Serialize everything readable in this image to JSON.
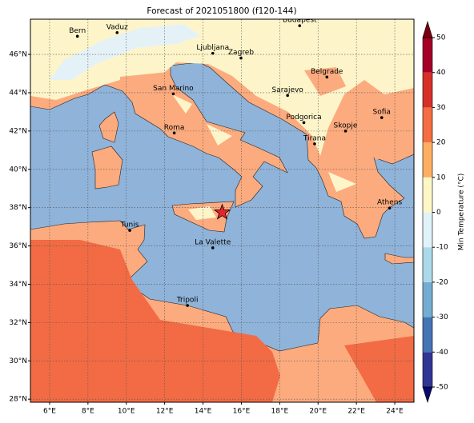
{
  "map": {
    "title": "Forecast of 2021051800 (f120-144)",
    "xlim": [
      5,
      25
    ],
    "ylim": [
      27.84,
      47.84
    ],
    "xticks": [
      {
        "value": 6,
        "label": "6°E"
      },
      {
        "value": 8,
        "label": "8°E"
      },
      {
        "value": 10,
        "label": "10°E"
      },
      {
        "value": 12,
        "label": "12°E"
      },
      {
        "value": 14,
        "label": "14°E"
      },
      {
        "value": 16,
        "label": "16°E"
      },
      {
        "value": 18,
        "label": "18°E"
      },
      {
        "value": 20,
        "label": "20°E"
      },
      {
        "value": 22,
        "label": "22°E"
      },
      {
        "value": 24,
        "label": "24°E"
      }
    ],
    "yticks": [
      {
        "value": 28,
        "label": "28°N"
      },
      {
        "value": 30,
        "label": "30°N"
      },
      {
        "value": 32,
        "label": "32°N"
      },
      {
        "value": 34,
        "label": "34°N"
      },
      {
        "value": 36,
        "label": "36°N"
      },
      {
        "value": 38,
        "label": "38°N"
      },
      {
        "value": 40,
        "label": "40°N"
      },
      {
        "value": 42,
        "label": "42°N"
      },
      {
        "value": 44,
        "label": "44°N"
      },
      {
        "value": 46,
        "label": "46°N"
      }
    ],
    "grid": true,
    "cities": [
      {
        "name": "Bern",
        "lon": 7.45,
        "lat": 46.95
      },
      {
        "name": "Vaduz",
        "lon": 9.52,
        "lat": 47.14
      },
      {
        "name": "Budapest",
        "lon": 19.04,
        "lat": 47.5
      },
      {
        "name": "Ljubljana",
        "lon": 14.51,
        "lat": 46.06
      },
      {
        "name": "Zagreb",
        "lon": 15.98,
        "lat": 45.81
      },
      {
        "name": "San Marino",
        "lon": 12.45,
        "lat": 43.94
      },
      {
        "name": "Belgrade",
        "lon": 20.46,
        "lat": 44.82
      },
      {
        "name": "Sarajevo",
        "lon": 18.41,
        "lat": 43.86
      },
      {
        "name": "Podgorica",
        "lon": 19.26,
        "lat": 42.44
      },
      {
        "name": "Sofia",
        "lon": 23.32,
        "lat": 42.7
      },
      {
        "name": "Skopje",
        "lon": 21.43,
        "lat": 42.0
      },
      {
        "name": "Roma",
        "lon": 12.5,
        "lat": 41.9
      },
      {
        "name": "Tirana",
        "lon": 19.82,
        "lat": 41.33
      },
      {
        "name": "Athens",
        "lon": 23.73,
        "lat": 37.98
      },
      {
        "name": "Tunis",
        "lon": 10.18,
        "lat": 36.81
      },
      {
        "name": "La Valette",
        "lon": 14.51,
        "lat": 35.9
      },
      {
        "name": "Tripoli",
        "lon": 13.19,
        "lat": 32.89
      }
    ],
    "marker": {
      "lon": 15.0,
      "lat": 37.75,
      "color": "#e8242a"
    }
  },
  "colorbar": {
    "label": "Min Temperature (°C)",
    "lim": [
      -50,
      50
    ],
    "ticks": [
      -50,
      -40,
      -30,
      -20,
      -10,
      0,
      10,
      20,
      30,
      40,
      50
    ],
    "colors": [
      "#313695",
      "#4575b4",
      "#74add1",
      "#abd9e9",
      "#e0f3f8",
      "#fff8c6",
      "#fdae61",
      "#f46d43",
      "#d73027",
      "#a50026"
    ],
    "under_color": "#0a0a6e",
    "over_color": "#7a0010"
  }
}
